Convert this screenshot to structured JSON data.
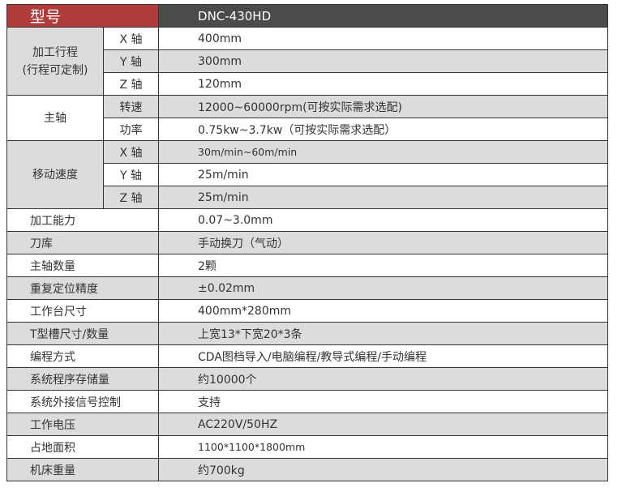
{
  "header": {
    "label": "型号",
    "model": "DNC-430HD"
  },
  "groups": [
    {
      "label": "加工行程\n(行程可定制)",
      "rows": [
        {
          "sub": "X 轴",
          "value": "400mm"
        },
        {
          "sub": "Y 轴",
          "value": "300mm"
        },
        {
          "sub": "Z 轴",
          "value": "120mm"
        }
      ]
    },
    {
      "label": "主轴",
      "rows": [
        {
          "sub": "转速",
          "value": "12000~60000rpm(可按实际需求选配)"
        },
        {
          "sub": "功率",
          "value": "0.75kw~3.7kw（可按实际需求选配）"
        }
      ]
    },
    {
      "label": "移动速度",
      "rows": [
        {
          "sub": "X 轴",
          "value": "30m/min~60m/min"
        },
        {
          "sub": "Y 轴",
          "value": "25m/min"
        },
        {
          "sub": "Z 轴",
          "value": "25m/min"
        }
      ]
    }
  ],
  "rows": [
    {
      "label": "加工能力",
      "value": "0.07~3.0mm"
    },
    {
      "label": "刀库",
      "value": "手动换刀（气动）"
    },
    {
      "label": "主轴数量",
      "value": "2颗"
    },
    {
      "label": "重复定位精度",
      "value": "±0.02mm"
    },
    {
      "label": "工作台尺寸",
      "value": "400mm*280mm"
    },
    {
      "label": "T型槽尺寸/数量",
      "value": "上宽13*下宽20*3条"
    },
    {
      "label": "编程方式",
      "value": "CDA图档导入/电脑编程/教导式编程/手动编程"
    },
    {
      "label": "系统程序存储量",
      "value": "约10000个"
    },
    {
      "label": "系统外接信号控制",
      "value": "支持"
    },
    {
      "label": "工作电压",
      "value": "AC220V/50HZ"
    },
    {
      "label": "占地面积",
      "value": "1100*1100*1800mm"
    },
    {
      "label": "机床重量",
      "value": "约700kg"
    }
  ]
}
